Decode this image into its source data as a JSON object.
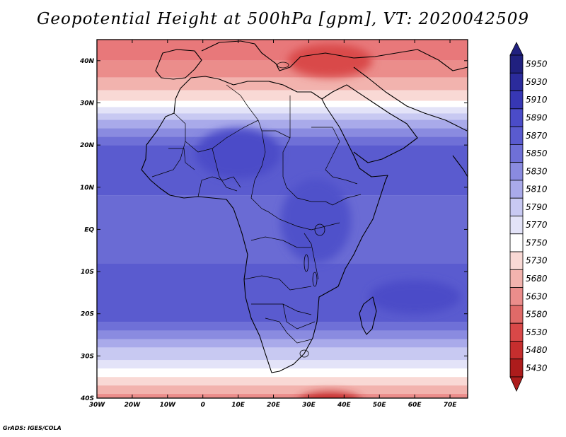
{
  "title": "Geopotential Height at 500hPa [gpm], VT: 2020042509",
  "credit": "GrADS: IGES/COLA",
  "map": {
    "lon_range": [
      -30,
      75
    ],
    "lat_range": [
      -40,
      45
    ],
    "x_ticks": [
      {
        "lon": -30,
        "label": "30W"
      },
      {
        "lon": -20,
        "label": "20W"
      },
      {
        "lon": -10,
        "label": "10W"
      },
      {
        "lon": 0,
        "label": "0"
      },
      {
        "lon": 10,
        "label": "10E"
      },
      {
        "lon": 20,
        "label": "20E"
      },
      {
        "lon": 30,
        "label": "30E"
      },
      {
        "lon": 40,
        "label": "40E"
      },
      {
        "lon": 50,
        "label": "50E"
      },
      {
        "lon": 60,
        "label": "60E"
      },
      {
        "lon": 70,
        "label": "70E"
      }
    ],
    "y_ticks": [
      {
        "lat": 40,
        "label": "40N"
      },
      {
        "lat": 30,
        "label": "30N"
      },
      {
        "lat": 20,
        "label": "20N"
      },
      {
        "lat": 10,
        "label": "10N"
      },
      {
        "lat": 0,
        "label": "EQ"
      },
      {
        "lat": -10,
        "label": "10S"
      },
      {
        "lat": -20,
        "label": "20S"
      },
      {
        "lat": -30,
        "label": "30S"
      },
      {
        "lat": -40,
        "label": "40S"
      }
    ],
    "bands": [
      {
        "lat": 45,
        "color": "#e8787a"
      },
      {
        "lat": 40,
        "color": "#eb8d8b"
      },
      {
        "lat": 36,
        "color": "#f2b3ae"
      },
      {
        "lat": 33,
        "color": "#f9d9d5"
      },
      {
        "lat": 30.5,
        "color": "#ffffff"
      },
      {
        "lat": 29,
        "color": "#e3e3f8"
      },
      {
        "lat": 27.5,
        "color": "#c8c9f2"
      },
      {
        "lat": 26,
        "color": "#a9aaea"
      },
      {
        "lat": 24,
        "color": "#8a8be0"
      },
      {
        "lat": 22,
        "color": "#6f70d7"
      },
      {
        "lat": 20,
        "color": "#5a5bcf"
      },
      {
        "lat": 8,
        "color": "#6a6bd4"
      },
      {
        "lat": -8,
        "color": "#5a5bcf"
      },
      {
        "lat": -22,
        "color": "#6f70d7"
      },
      {
        "lat": -24,
        "color": "#8a8be0"
      },
      {
        "lat": -26,
        "color": "#a9aaea"
      },
      {
        "lat": -28,
        "color": "#c8c9f2"
      },
      {
        "lat": -31,
        "color": "#e3e3f8"
      },
      {
        "lat": -33,
        "color": "#ffffff"
      },
      {
        "lat": -35,
        "color": "#f9d9d5"
      },
      {
        "lat": -37,
        "color": "#f2b3ae"
      },
      {
        "lat": -39,
        "color": "#eb8d8b"
      }
    ],
    "blobs": [
      {
        "name": "sahara-high",
        "lon": 10,
        "lat": 18,
        "rlon": 12,
        "rlat": 6,
        "color": "#4b4cc8"
      },
      {
        "name": "east-africa-high",
        "lon": 32,
        "lat": 2,
        "rlon": 10,
        "rlat": 10,
        "color": "#5051ca"
      },
      {
        "name": "indian-ocean-high",
        "lon": 60,
        "lat": -16,
        "rlon": 13,
        "rlat": 4,
        "color": "#4b4cc8"
      },
      {
        "name": "turkey-low",
        "lon": 36,
        "lat": 40,
        "rlon": 12,
        "rlat": 4,
        "color": "#d94848"
      },
      {
        "name": "south-low",
        "lon": 36,
        "lat": -41,
        "rlon": 9,
        "rlat": 2.5,
        "color": "#c62e2e"
      }
    ]
  },
  "colorbar": {
    "levels": [
      {
        "label": "5950",
        "color": "#20207f"
      },
      {
        "label": "5930",
        "color": "#2b2b9c"
      },
      {
        "label": "5910",
        "color": "#3737b4"
      },
      {
        "label": "5890",
        "color": "#4b4cc8"
      },
      {
        "label": "5870",
        "color": "#5a5bcf"
      },
      {
        "label": "5850",
        "color": "#6f70d7"
      },
      {
        "label": "5830",
        "color": "#8a8be0"
      },
      {
        "label": "5810",
        "color": "#a9aaea"
      },
      {
        "label": "5790",
        "color": "#c8c9f2"
      },
      {
        "label": "5770",
        "color": "#e3e3f8"
      },
      {
        "label": "5750",
        "color": "#ffffff"
      },
      {
        "label": "5730",
        "color": "#f9d9d5"
      },
      {
        "label": "5680",
        "color": "#f2b3ae"
      },
      {
        "label": "5630",
        "color": "#eb8d8b"
      },
      {
        "label": "5580",
        "color": "#e06a68"
      },
      {
        "label": "5530",
        "color": "#d94848"
      },
      {
        "label": "5480",
        "color": "#c62e2e"
      },
      {
        "label": "5430",
        "color": "#ad1c1c"
      }
    ],
    "top_arrow_color": "#20207f",
    "bottom_arrow_color": "#ad1c1c"
  }
}
